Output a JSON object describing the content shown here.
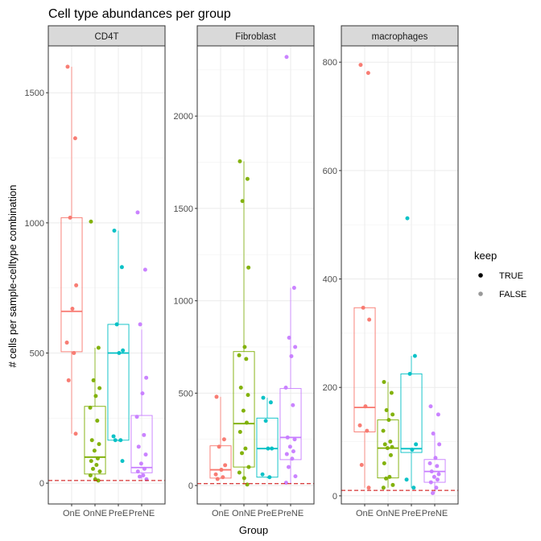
{
  "chart_data": {
    "type": "box",
    "title": "Cell type abundances per group",
    "xlabel": "Group",
    "ylabel": "# cells per sample-celltype combination",
    "categories": [
      "OnE",
      "OnNE",
      "PreE",
      "PreNE"
    ],
    "colors": {
      "OnE": "#F8766D",
      "OnNE": "#7CAE00",
      "PreE": "#00BFC4",
      "PreNE": "#C77CFF"
    },
    "threshold_line": {
      "value": 10,
      "color": "#CC0000",
      "style": "dashed"
    },
    "legend": {
      "title": "keep",
      "placement": "right",
      "entries": [
        {
          "label": "TRUE",
          "alpha": 1.0
        },
        {
          "label": "FALSE",
          "alpha": 0.4
        }
      ]
    },
    "grid": true,
    "panels": [
      {
        "strip": "CD4T",
        "ylim": [
          -80,
          1680
        ],
        "yticks": [
          0,
          500,
          1000,
          1500
        ],
        "boxes": {
          "OnE": {
            "min": 190,
            "q1": 505,
            "median": 660,
            "q3": 1020,
            "max": 1600
          },
          "OnNE": {
            "min": 15,
            "q1": 35,
            "median": 100,
            "q3": 295,
            "max": 520
          },
          "PreE": {
            "min": 160,
            "q1": 165,
            "median": 500,
            "q3": 610,
            "max": 970
          },
          "PreNE": {
            "min": 15,
            "q1": 40,
            "median": 60,
            "q3": 260,
            "max": 590
          }
        },
        "points": {
          "OnE": [
            1600,
            1325,
            1020,
            760,
            670,
            540,
            500,
            395,
            190
          ],
          "OnNE": [
            1005,
            520,
            395,
            365,
            335,
            290,
            240,
            165,
            150,
            125,
            95,
            85,
            70,
            55,
            45,
            30,
            15,
            10
          ],
          "PreE": [
            970,
            830,
            610,
            510,
            500,
            180,
            165,
            165,
            85
          ],
          "PreNE": [
            1040,
            820,
            610,
            405,
            345,
            255,
            185,
            140,
            110,
            75,
            55,
            45,
            30,
            25,
            15
          ]
        }
      },
      {
        "strip": "Fibroblast",
        "ylim": [
          -100,
          2380
        ],
        "yticks": [
          0,
          500,
          1000,
          1500,
          2000
        ],
        "boxes": {
          "OnE": {
            "min": 35,
            "q1": 40,
            "median": 85,
            "q3": 215,
            "max": 480
          },
          "OnNE": {
            "min": 5,
            "q1": 100,
            "median": 335,
            "q3": 725,
            "max": 1755
          },
          "PreE": {
            "min": 40,
            "q1": 45,
            "median": 200,
            "q3": 365,
            "max": 475
          },
          "PreNE": {
            "min": 10,
            "q1": 140,
            "median": 260,
            "q3": 525,
            "max": 1070
          }
        },
        "points": {
          "OnE": [
            480,
            250,
            210,
            110,
            85,
            60,
            45,
            35
          ],
          "OnNE": [
            1755,
            1660,
            1540,
            1180,
            750,
            705,
            685,
            530,
            490,
            405,
            340,
            290,
            200,
            175,
            100,
            70,
            40,
            5
          ],
          "PreE": [
            475,
            450,
            350,
            200,
            200,
            60,
            45
          ],
          "PreNE": [
            2320,
            1070,
            800,
            750,
            700,
            530,
            435,
            260,
            250,
            210,
            185,
            170,
            145,
            100,
            50,
            15
          ]
        }
      },
      {
        "strip": "macrophages",
        "ylim": [
          -15,
          830
        ],
        "yticks": [
          0,
          200,
          400,
          600,
          800
        ],
        "boxes": {
          "OnE": {
            "min": 15,
            "q1": 118,
            "median": 163,
            "q3": 347,
            "max": 347
          },
          "OnNE": {
            "min": 15,
            "q1": 33,
            "median": 88,
            "q3": 140,
            "max": 210
          },
          "PreE": {
            "min": 15,
            "q1": 80,
            "median": 87,
            "q3": 225,
            "max": 258
          },
          "PreNE": {
            "min": 5,
            "q1": 25,
            "median": 45,
            "q3": 67,
            "max": 115
          }
        },
        "points": {
          "OnE": [
            795,
            780,
            347,
            325,
            165,
            130,
            120,
            57,
            15
          ],
          "OnNE": [
            210,
            190,
            158,
            150,
            140,
            120,
            100,
            95,
            90,
            88,
            75,
            60,
            35,
            32,
            20,
            15
          ],
          "PreE": [
            512,
            258,
            225,
            95,
            85,
            30,
            15
          ],
          "PreNE": [
            165,
            150,
            115,
            95,
            70,
            60,
            55,
            45,
            40,
            35,
            30,
            25,
            15,
            5
          ]
        }
      }
    ]
  }
}
